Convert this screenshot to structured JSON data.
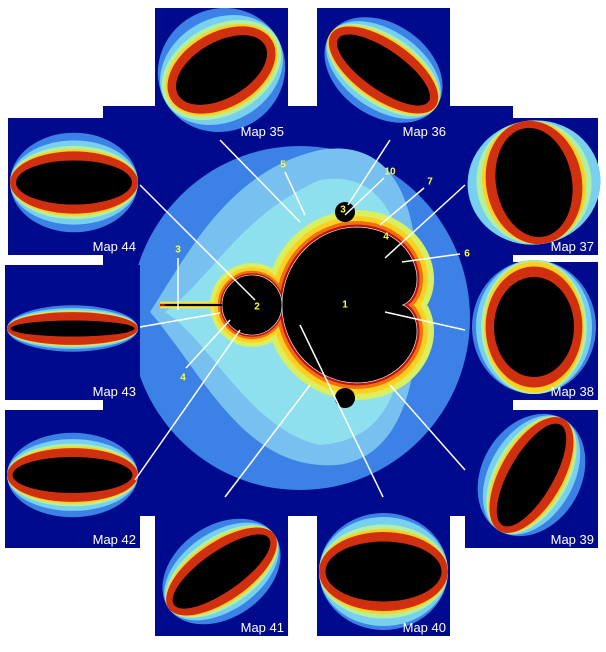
{
  "maps": [
    "Map 35",
    "Map 36",
    "Map 37",
    "Map 38",
    "Map 39",
    "Map 40",
    "Map 41",
    "Map 42",
    "Map 43",
    "Map 44"
  ],
  "region_labels": [
    "1",
    "2",
    "3",
    "4",
    "3",
    "4",
    "5",
    "6",
    "7",
    "10"
  ]
}
